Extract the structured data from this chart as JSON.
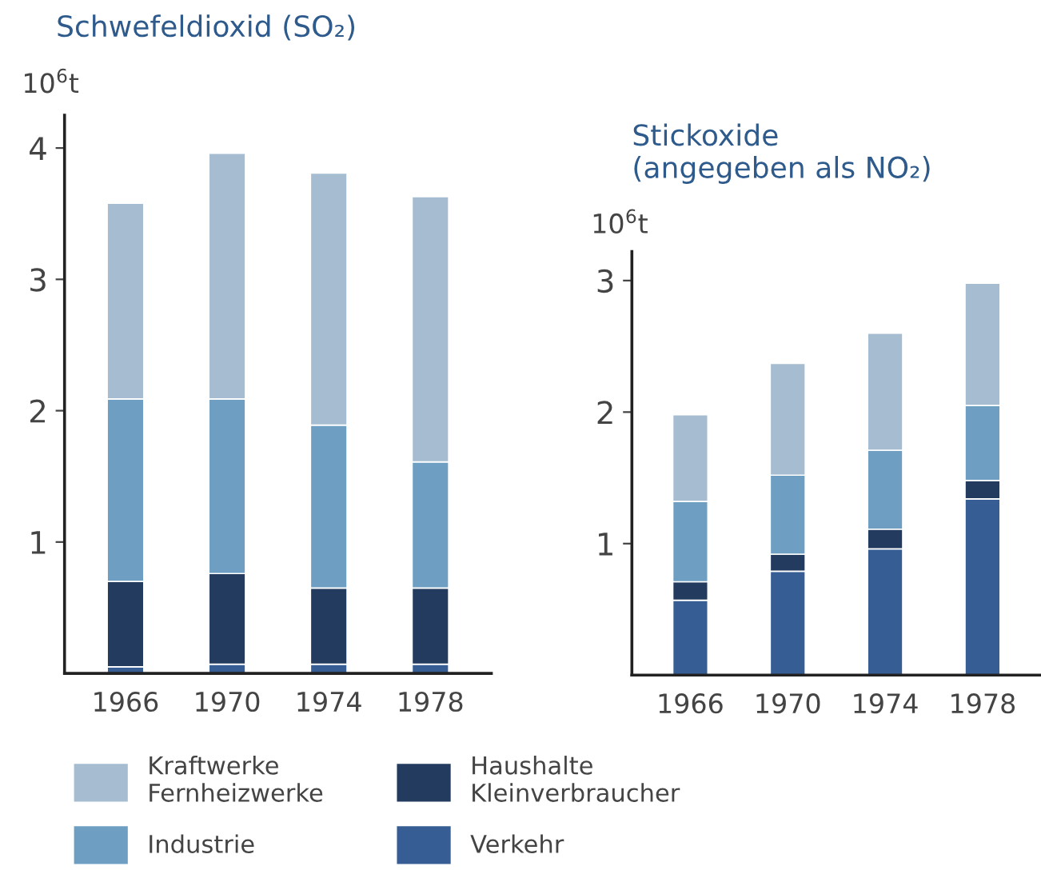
{
  "chart_data": [
    {
      "type": "bar",
      "stacked": true,
      "title": "Schwefeldioxid (SO₂)",
      "ylabel": "10$^{6}$t",
      "categories": [
        "1966",
        "1970",
        "1974",
        "1978"
      ],
      "ylim": [
        0,
        4.25
      ],
      "yticks": [
        1,
        2,
        3,
        4
      ],
      "grid": false,
      "legend": "bottom",
      "series": [
        {
          "name": "Verkehr",
          "color": "#375e94",
          "values": [
            0.05,
            0.07,
            0.07,
            0.07
          ]
        },
        {
          "name": "Haushalte\nKleinverbraucher",
          "color": "#233b5e",
          "values": [
            0.65,
            0.69,
            0.58,
            0.58
          ]
        },
        {
          "name": "Industrie",
          "color": "#6e9fc3",
          "values": [
            1.39,
            1.33,
            1.24,
            0.96
          ]
        },
        {
          "name": "Kraftwerke\nFernheizwerke",
          "color": "#a6bcd1",
          "values": [
            1.49,
            1.87,
            1.92,
            2.02
          ]
        }
      ]
    },
    {
      "type": "bar",
      "stacked": true,
      "title": "Stickoxide\n(angegeben als NO₂)",
      "ylabel": "10$^{6}$t",
      "categories": [
        "1966",
        "1970",
        "1974",
        "1978"
      ],
      "ylim": [
        0,
        3.22
      ],
      "yticks": [
        1,
        2,
        3
      ],
      "grid": false,
      "series": [
        {
          "color": "#375e94",
          "values": [
            0.57,
            0.79,
            0.96,
            1.34
          ]
        },
        {
          "color": "#233b5e",
          "values": [
            0.14,
            0.13,
            0.15,
            0.14
          ]
        },
        {
          "color": "#6e9fc3",
          "values": [
            0.61,
            0.6,
            0.6,
            0.57
          ]
        },
        {
          "color": "#a6bcd1",
          "values": [
            0.66,
            0.85,
            0.89,
            0.93
          ]
        }
      ]
    }
  ]
}
